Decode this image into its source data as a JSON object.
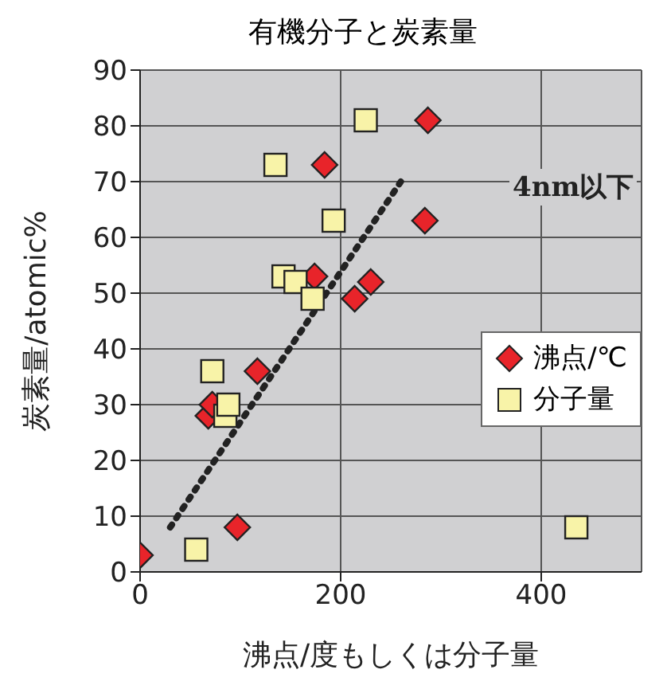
{
  "chart_data": {
    "type": "scatter",
    "title": "有機分子と炭素量",
    "xlabel": "沸点/度もしくは分子量",
    "ylabel": "炭素量/atomic%",
    "xlim": [
      0,
      500
    ],
    "xticks": [
      0,
      200,
      400
    ],
    "ylim": [
      0,
      90
    ],
    "yticks": [
      0,
      10,
      20,
      30,
      40,
      50,
      60,
      70,
      80,
      90
    ],
    "grid": true,
    "legend": "right",
    "series": [
      {
        "name": "沸点/℃",
        "color": "#e8242a",
        "marker": "diamond",
        "x": [
          0,
          97,
          68,
          72,
          117,
          174,
          184,
          214,
          230,
          284,
          287
        ],
        "values": [
          3,
          8,
          28,
          30,
          36,
          53,
          73,
          49,
          52,
          63,
          81
        ]
      },
      {
        "name": "分子量",
        "color": "#f8f3a8",
        "marker": "square",
        "x": [
          56,
          72,
          85,
          88,
          135,
          143,
          155,
          172,
          193,
          225,
          435
        ],
        "values": [
          4,
          36,
          28,
          30,
          73,
          53,
          52,
          49,
          63,
          81,
          8
        ]
      },
      {
        "type": "line",
        "color": "#222222",
        "line_style": "dotted",
        "marker": "none",
        "x": [
          30,
          260
        ],
        "values": [
          8,
          70
        ]
      }
    ],
    "annotations": [
      "4nm以下"
    ]
  }
}
